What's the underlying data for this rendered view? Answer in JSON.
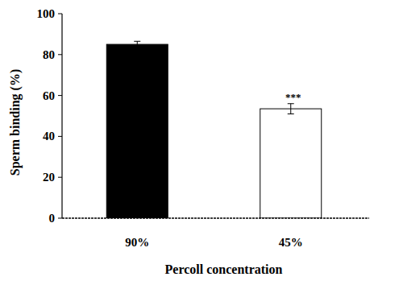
{
  "chart_data": {
    "type": "bar",
    "x_label": "Percoll concentration",
    "y_label": "Sperm binding (%)",
    "categories": [
      "90%",
      "45%"
    ],
    "values": [
      85,
      53.5
    ],
    "errors": [
      1.5,
      2.5
    ],
    "colors": [
      "#000000",
      "#ffffff"
    ],
    "annotations": [
      {
        "index": 1,
        "text": "***"
      }
    ],
    "ylim": [
      0,
      100
    ],
    "yticks": [
      0,
      20,
      40,
      60,
      80,
      100
    ],
    "grid": false
  }
}
